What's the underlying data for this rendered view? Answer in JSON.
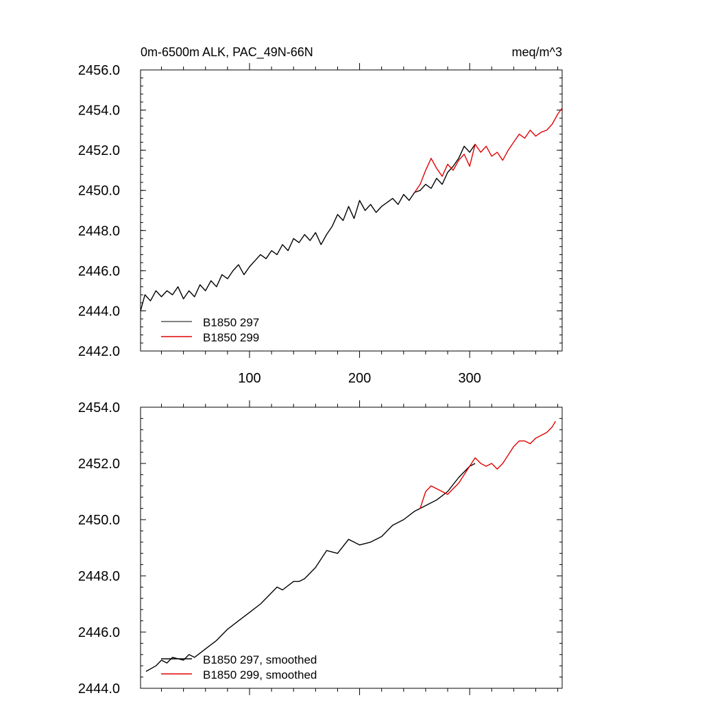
{
  "colors": {
    "run_297": "#000000",
    "run_299": "#e00000"
  },
  "chart_data": [
    {
      "type": "line",
      "panel": "raw",
      "title_left": "0m-6500m ALK, PAC_49N-66N",
      "title_right": "meq/m^3",
      "xlim": [
        1,
        384
      ],
      "ylim": [
        2442.0,
        2456.0
      ],
      "x_ticks": [
        100,
        200,
        300
      ],
      "x_tick_labels": [
        "100",
        "200",
        "300"
      ],
      "y_ticks": [
        2442.0,
        2444.0,
        2446.0,
        2448.0,
        2450.0,
        2452.0,
        2454.0,
        2456.0
      ],
      "y_tick_labels": [
        "2442.0",
        "2444.0",
        "2446.0",
        "2448.0",
        "2450.0",
        "2452.0",
        "2454.0",
        "2456.0"
      ],
      "legend_position": "bottom-left",
      "series": [
        {
          "name": "B1850 297",
          "color_key": "run_297",
          "x": [
            1,
            5,
            10,
            15,
            20,
            25,
            30,
            35,
            40,
            45,
            50,
            55,
            60,
            65,
            70,
            75,
            80,
            85,
            90,
            95,
            100,
            105,
            110,
            115,
            120,
            125,
            130,
            135,
            140,
            145,
            150,
            155,
            160,
            165,
            170,
            175,
            180,
            185,
            190,
            195,
            200,
            205,
            210,
            215,
            220,
            225,
            230,
            235,
            240,
            245,
            250,
            255,
            260,
            265,
            270,
            275,
            280,
            285,
            290,
            295,
            300,
            305
          ],
          "values": [
            2444.0,
            2444.8,
            2444.5,
            2445.0,
            2444.7,
            2445.0,
            2444.8,
            2445.2,
            2444.6,
            2445.0,
            2444.7,
            2445.3,
            2445.0,
            2445.5,
            2445.2,
            2445.8,
            2445.6,
            2446.0,
            2446.3,
            2445.8,
            2446.2,
            2446.5,
            2446.8,
            2446.6,
            2447.0,
            2446.8,
            2447.3,
            2447.0,
            2447.6,
            2447.4,
            2447.8,
            2447.5,
            2447.9,
            2447.3,
            2447.8,
            2448.2,
            2448.8,
            2448.5,
            2449.2,
            2448.6,
            2449.5,
            2449.0,
            2449.3,
            2448.9,
            2449.2,
            2449.4,
            2449.6,
            2449.3,
            2449.8,
            2449.5,
            2449.9,
            2450.0,
            2450.3,
            2450.1,
            2450.6,
            2450.3,
            2450.9,
            2451.2,
            2451.6,
            2452.2,
            2451.9,
            2452.3
          ]
        },
        {
          "name": "B1850 299",
          "color_key": "run_299",
          "x": [
            250,
            255,
            260,
            265,
            270,
            275,
            280,
            285,
            290,
            295,
            300,
            305,
            310,
            315,
            320,
            325,
            330,
            335,
            340,
            345,
            350,
            355,
            360,
            365,
            370,
            375,
            380,
            384
          ],
          "values": [
            2449.9,
            2450.3,
            2451.0,
            2451.6,
            2451.1,
            2450.7,
            2451.3,
            2451.0,
            2451.5,
            2451.8,
            2451.2,
            2452.3,
            2451.9,
            2452.2,
            2451.7,
            2451.9,
            2451.5,
            2452.0,
            2452.4,
            2452.8,
            2452.6,
            2453.0,
            2452.7,
            2452.9,
            2453.0,
            2453.3,
            2453.8,
            2454.1
          ]
        }
      ]
    },
    {
      "type": "line",
      "panel": "smoothed",
      "xlim": [
        1,
        384
      ],
      "ylim": [
        2444.0,
        2454.0
      ],
      "y_ticks": [
        2444.0,
        2446.0,
        2448.0,
        2450.0,
        2452.0,
        2454.0
      ],
      "y_tick_labels": [
        "2444.0",
        "2446.0",
        "2448.0",
        "2450.0",
        "2452.0",
        "2454.0"
      ],
      "legend_position": "bottom-left",
      "series": [
        {
          "name": "B1850 297, smoothed",
          "color_key": "run_297",
          "x": [
            6,
            15,
            20,
            25,
            30,
            40,
            45,
            50,
            60,
            70,
            80,
            90,
            100,
            110,
            120,
            125,
            130,
            140,
            145,
            150,
            160,
            170,
            180,
            190,
            195,
            200,
            210,
            220,
            225,
            230,
            240,
            250,
            260,
            270,
            280,
            290,
            300,
            305
          ],
          "values": [
            2444.6,
            2444.8,
            2445.0,
            2444.9,
            2445.1,
            2445.0,
            2445.2,
            2445.1,
            2445.4,
            2445.7,
            2446.1,
            2446.4,
            2446.7,
            2447.0,
            2447.4,
            2447.6,
            2447.5,
            2447.8,
            2447.8,
            2447.9,
            2448.3,
            2448.9,
            2448.8,
            2449.3,
            2449.2,
            2449.1,
            2449.2,
            2449.4,
            2449.6,
            2449.8,
            2450.0,
            2450.3,
            2450.5,
            2450.7,
            2451.0,
            2451.5,
            2451.9,
            2452.0
          ]
        },
        {
          "name": "B1850 299, smoothed",
          "color_key": "run_299",
          "x": [
            255,
            260,
            265,
            270,
            275,
            280,
            285,
            290,
            295,
            300,
            305,
            310,
            315,
            320,
            325,
            330,
            335,
            340,
            345,
            350,
            355,
            360,
            365,
            370,
            375,
            378
          ],
          "values": [
            2450.4,
            2451.0,
            2451.2,
            2451.1,
            2451.0,
            2450.9,
            2451.1,
            2451.3,
            2451.6,
            2451.9,
            2452.2,
            2452.0,
            2451.9,
            2452.0,
            2451.8,
            2452.0,
            2452.3,
            2452.6,
            2452.8,
            2452.8,
            2452.7,
            2452.9,
            2453.0,
            2453.1,
            2453.3,
            2453.5
          ]
        }
      ]
    }
  ]
}
